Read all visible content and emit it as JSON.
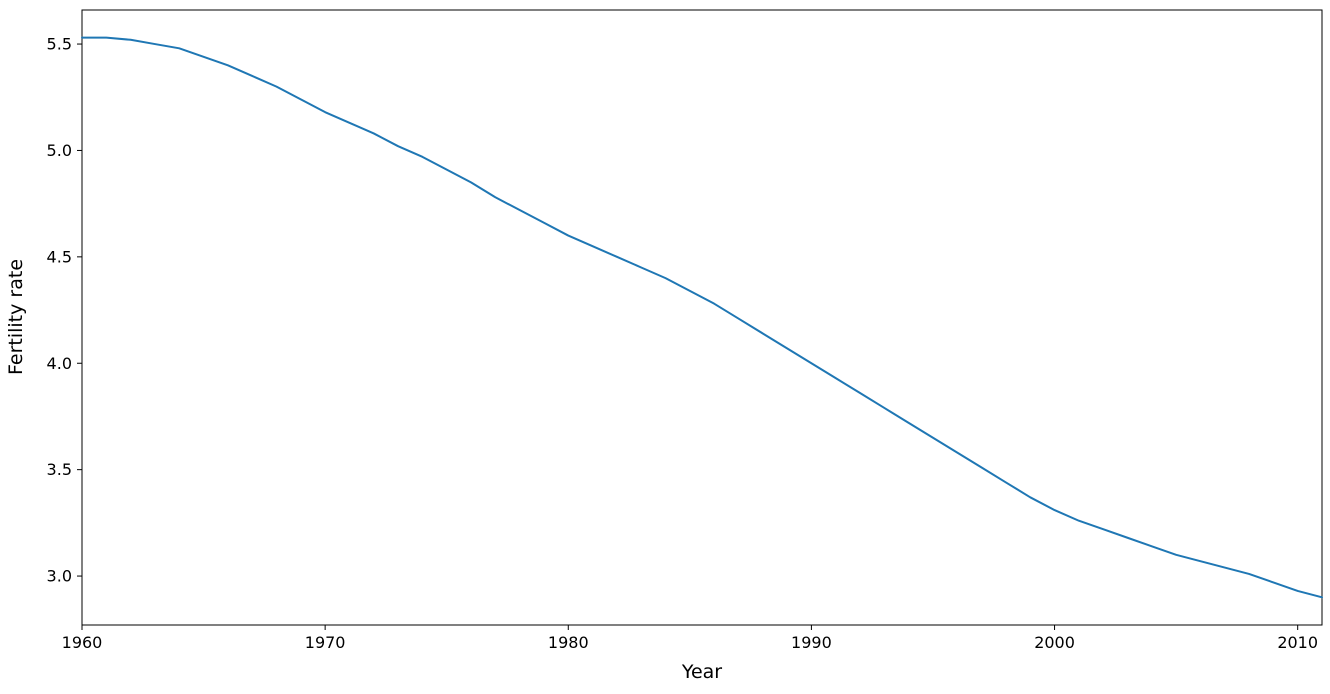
{
  "chart_data": {
    "type": "line",
    "title": "",
    "xlabel": "Year",
    "ylabel": "Fertility rate",
    "grid": false,
    "legend": "none",
    "line_color": "#1f77b4",
    "line_width": 2,
    "background_color": "#ffffff",
    "spine_color": "#000000",
    "xlim": [
      1960,
      2011
    ],
    "ylim": [
      2.77,
      5.66
    ],
    "xticks": [
      1960,
      1970,
      1980,
      1990,
      2000,
      2010
    ],
    "xtick_labels": [
      "1960",
      "1970",
      "1980",
      "1990",
      "2000",
      "2010"
    ],
    "yticks": [
      3.0,
      3.5,
      4.0,
      4.5,
      5.0,
      5.5
    ],
    "ytick_labels": [
      "3.0",
      "3.5",
      "4.0",
      "4.5",
      "5.0",
      "5.5"
    ],
    "series": [
      {
        "name": "Fertility rate",
        "x": [
          1960,
          1961,
          1962,
          1963,
          1964,
          1965,
          1966,
          1967,
          1968,
          1969,
          1970,
          1971,
          1972,
          1973,
          1974,
          1975,
          1976,
          1977,
          1978,
          1979,
          1980,
          1981,
          1982,
          1983,
          1984,
          1985,
          1986,
          1987,
          1988,
          1989,
          1990,
          1991,
          1992,
          1993,
          1994,
          1995,
          1996,
          1997,
          1998,
          1999,
          2000,
          2001,
          2002,
          2003,
          2004,
          2005,
          2006,
          2007,
          2008,
          2009,
          2010,
          2011
        ],
        "values": [
          5.53,
          5.53,
          5.52,
          5.5,
          5.48,
          5.44,
          5.4,
          5.35,
          5.3,
          5.24,
          5.18,
          5.13,
          5.08,
          5.02,
          4.97,
          4.91,
          4.85,
          4.78,
          4.72,
          4.66,
          4.6,
          4.55,
          4.5,
          4.45,
          4.4,
          4.34,
          4.28,
          4.21,
          4.14,
          4.07,
          4.0,
          3.93,
          3.86,
          3.79,
          3.72,
          3.65,
          3.58,
          3.51,
          3.44,
          3.37,
          3.31,
          3.26,
          3.22,
          3.18,
          3.14,
          3.1,
          3.07,
          3.04,
          3.01,
          2.97,
          2.93,
          2.9
        ]
      }
    ]
  }
}
